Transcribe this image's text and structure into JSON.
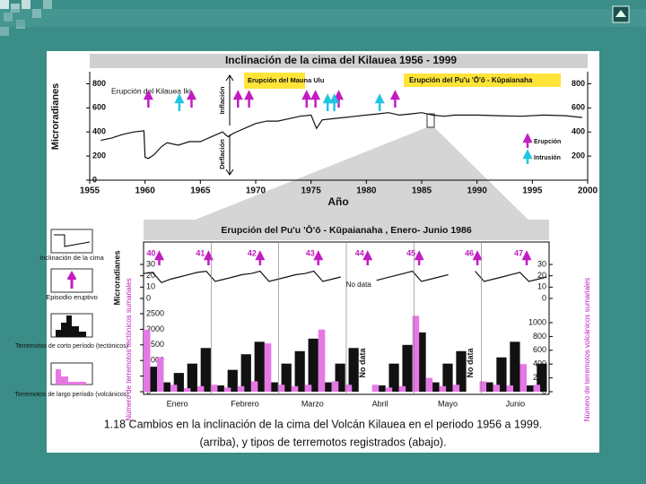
{
  "slide": {
    "caption_line1": "1.18  Cambios en la inclinación de la cima del Volcán Kilauea en el periodo 1956 a 1999.",
    "caption_line2": "(arriba), y tipos de terremotos registrados (abajo)."
  },
  "figure_legend": {
    "items": [
      "Inclinación de la cima",
      "Episodio eruptivo",
      "Terremotos de corto período (tectónicos)",
      "Terremotos de largo período (volcánicos)"
    ]
  },
  "chart_data": [
    {
      "type": "line",
      "title": "Inclinación de la cima del  Kilauea 1956 - 1999",
      "x_label": "Año",
      "y_label": "Microradianes",
      "annotations": [
        "Erupción del Kilauea Iki",
        "Erupción del Mauna Ulu",
        "Erupción del Pu'u 'Ō'ō - Kūpaianaha",
        "Inflación",
        "Deflación"
      ],
      "xlim": [
        1955,
        2000
      ],
      "xticks": [
        1955,
        1960,
        1965,
        1970,
        1975,
        1980,
        1985,
        1990,
        1995,
        2000
      ],
      "ylim": [
        0,
        900
      ],
      "yticks": [
        0,
        200,
        400,
        600,
        800
      ],
      "y2lim": [
        0,
        900
      ],
      "y2ticks": [
        200,
        400,
        600,
        800
      ],
      "series": [
        {
          "color": "#111111",
          "x": [
            1956,
            1957,
            1958,
            1959,
            1959.9,
            1960.0,
            1960.3,
            1960.8,
            1961.5,
            1962,
            1963,
            1964,
            1965,
            1966,
            1967,
            1967.5,
            1968,
            1969,
            1970,
            1971,
            1972,
            1973,
            1974,
            1975,
            1975.5,
            1976,
            1977,
            1978,
            1979,
            1980,
            1981,
            1982,
            1983,
            1984,
            1985,
            1986,
            1987,
            1988,
            1989,
            1990,
            1992,
            1994,
            1996,
            1998,
            1999.5
          ],
          "values": [
            330,
            350,
            380,
            400,
            410,
            190,
            180,
            210,
            280,
            310,
            290,
            320,
            320,
            360,
            400,
            360,
            390,
            430,
            470,
            490,
            490,
            510,
            530,
            540,
            430,
            500,
            510,
            520,
            530,
            540,
            550,
            560,
            540,
            550,
            560,
            540,
            530,
            540,
            540,
            540,
            535,
            530,
            540,
            535,
            520
          ]
        }
      ],
      "markers": [
        {
          "name": "Erupción",
          "color": "#c21cc2",
          "x": [
            1960.3,
            1964.2,
            1968.4,
            1969.4,
            1974.6,
            1975.4,
            1977.5,
            1982.6
          ]
        },
        {
          "name": "Intrusión",
          "color": "#22c4e4",
          "x": [
            1963.1,
            1976.5,
            1977.1,
            1981.2
          ]
        }
      ]
    },
    {
      "type": "line",
      "title": "Erupción del Pu'u 'Ō'ō - Kūpaianaha , Enero- Junio 1986",
      "y_label": "Microradianes",
      "annotation": "No data",
      "xlim": [
        1,
        182
      ],
      "ylim": [
        0,
        34
      ],
      "yticks": [
        0,
        10,
        20,
        30
      ],
      "y2lim": [
        0,
        34
      ],
      "y2ticks": [
        0,
        10,
        20,
        30
      ],
      "series": [
        {
          "color": "#111111",
          "x": [
            1,
            5,
            9,
            13,
            17,
            21,
            25,
            29,
            33,
            37,
            41,
            45,
            49,
            53,
            57,
            61,
            65,
            69,
            73,
            77,
            81,
            85,
            89,
            93,
            97,
            101,
            105,
            109,
            113,
            117,
            121,
            125,
            129,
            133,
            137,
            141,
            145,
            149,
            153,
            157,
            161,
            165,
            169,
            173,
            177,
            181
          ],
          "values": [
            22,
            23,
            14,
            17,
            19,
            21,
            23,
            24,
            15,
            17,
            19,
            21,
            22,
            24,
            15,
            17,
            19,
            21,
            22,
            24,
            15,
            17,
            19,
            null,
            null,
            null,
            16,
            18,
            20,
            22,
            24,
            15,
            17,
            19,
            21,
            null,
            null,
            24,
            15,
            17,
            19,
            21,
            23,
            15,
            17,
            19
          ]
        }
      ],
      "episodes": {
        "color": "#c21cc2",
        "labels": [
          "40",
          "41",
          "42",
          "43",
          "44",
          "45",
          "46",
          "47"
        ],
        "x": [
          8,
          30,
          53,
          79,
          101,
          124,
          150,
          172
        ]
      }
    },
    {
      "type": "histogram",
      "categories": [
        "Enero",
        "Febrero",
        "Marzo",
        "Abril",
        "Mayo",
        "Junio"
      ],
      "y_label": "Número de terremotos tectónicos sumariales",
      "y2_label": "Número de terremotos volcánicos sumariales",
      "annotation": "No data",
      "annotation_x": [
        99,
        147
      ],
      "xlim": [
        1,
        182
      ],
      "ylim": [
        0,
        2500
      ],
      "yticks": [
        0,
        500,
        1000,
        1500,
        2000,
        2500
      ],
      "y2lim": [
        0,
        1130
      ],
      "y2ticks": [
        0,
        200,
        400,
        600,
        800,
        1000
      ],
      "bins": [
        1,
        7,
        13,
        19,
        25,
        31,
        37,
        43,
        49,
        55,
        61,
        67,
        73,
        79,
        85,
        91,
        97,
        103,
        109,
        115,
        121,
        127,
        133,
        139,
        145,
        151,
        157,
        163,
        169,
        175,
        181
      ],
      "series": [
        {
          "color": "#111111",
          "values": [
            800,
            300,
            600,
            900,
            1400,
            200,
            700,
            1200,
            1600,
            300,
            900,
            1300,
            1700,
            300,
            900,
            1400,
            0,
            200,
            900,
            1500,
            1900,
            300,
            900,
            1300,
            0,
            300,
            1100,
            1600,
            200,
            900
          ]
        },
        {
          "color": "#e678e6",
          "axis": "y2",
          "values": [
            900,
            500,
            100,
            50,
            80,
            100,
            60,
            80,
            150,
            700,
            100,
            80,
            100,
            900,
            150,
            100,
            0,
            100,
            60,
            80,
            1100,
            200,
            80,
            100,
            0,
            150,
            100,
            90,
            400,
            100
          ]
        }
      ]
    }
  ]
}
